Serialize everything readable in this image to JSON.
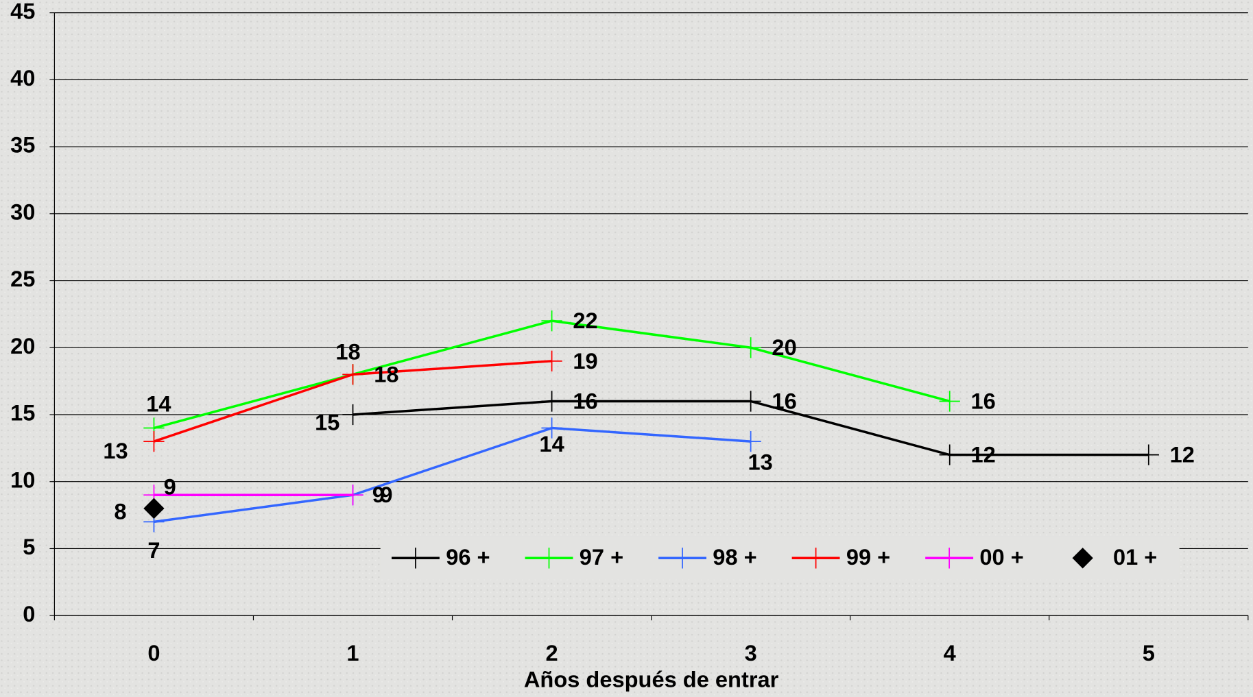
{
  "chart_data": {
    "type": "line",
    "x_label": "Años después de entrar",
    "categories": [
      "0",
      "1",
      "2",
      "3",
      "4",
      "5"
    ],
    "ylim": [
      0,
      45
    ],
    "yticks": [
      0,
      5,
      10,
      15,
      20,
      25,
      30,
      35,
      40,
      45
    ],
    "grid": true,
    "series": [
      {
        "name": "96 +",
        "color": "#000000",
        "marker": "plus",
        "values": [
          null,
          15,
          16,
          16,
          12,
          12
        ]
      },
      {
        "name": "97 +",
        "color": "#00ff00",
        "marker": "plus",
        "values": [
          14,
          18,
          22,
          20,
          16,
          null
        ]
      },
      {
        "name": "98 +",
        "color": "#3366ff",
        "marker": "plus",
        "values": [
          7,
          9,
          14,
          13,
          null,
          null
        ]
      },
      {
        "name": "99 +",
        "color": "#ff0000",
        "marker": "plus",
        "values": [
          13,
          18,
          19,
          null,
          null,
          null
        ]
      },
      {
        "name": "00 +",
        "color": "#ff00ff",
        "marker": "plus",
        "values": [
          9,
          9,
          null,
          null,
          null,
          null
        ]
      },
      {
        "name": "01 +",
        "color": "#000000",
        "marker": "diamond",
        "values": [
          8,
          null,
          null,
          null,
          null,
          null
        ]
      }
    ]
  }
}
